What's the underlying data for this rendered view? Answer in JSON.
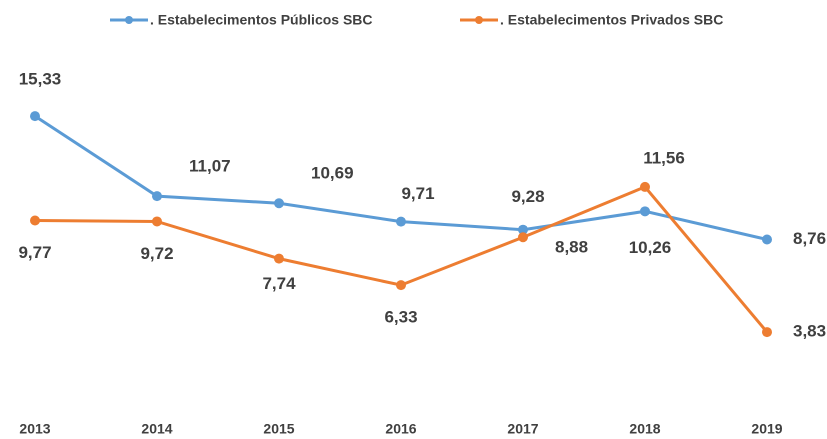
{
  "chart_data": {
    "type": "line",
    "categories": [
      "2013",
      "2014",
      "2015",
      "2016",
      "2017",
      "2018",
      "2019"
    ],
    "series": [
      {
        "name": ". Estabelecimentos Públicos SBC",
        "color": "#5b9bd5",
        "values": [
          15.33,
          11.07,
          10.69,
          9.71,
          9.28,
          10.26,
          8.76
        ],
        "value_labels": [
          "15,33",
          "11,07",
          "10,69",
          "9,71",
          "9,28",
          "10,26",
          "8,76"
        ]
      },
      {
        "name": ". Estabelecimentos Privados SBC",
        "color": "#ed7d31",
        "values": [
          9.77,
          9.72,
          7.74,
          6.33,
          8.88,
          11.56,
          3.83
        ],
        "value_labels": [
          "9,77",
          "9,72",
          "7,74",
          "6,33",
          "8,88",
          "11,56",
          "3,83"
        ]
      }
    ],
    "legend": "top"
  }
}
